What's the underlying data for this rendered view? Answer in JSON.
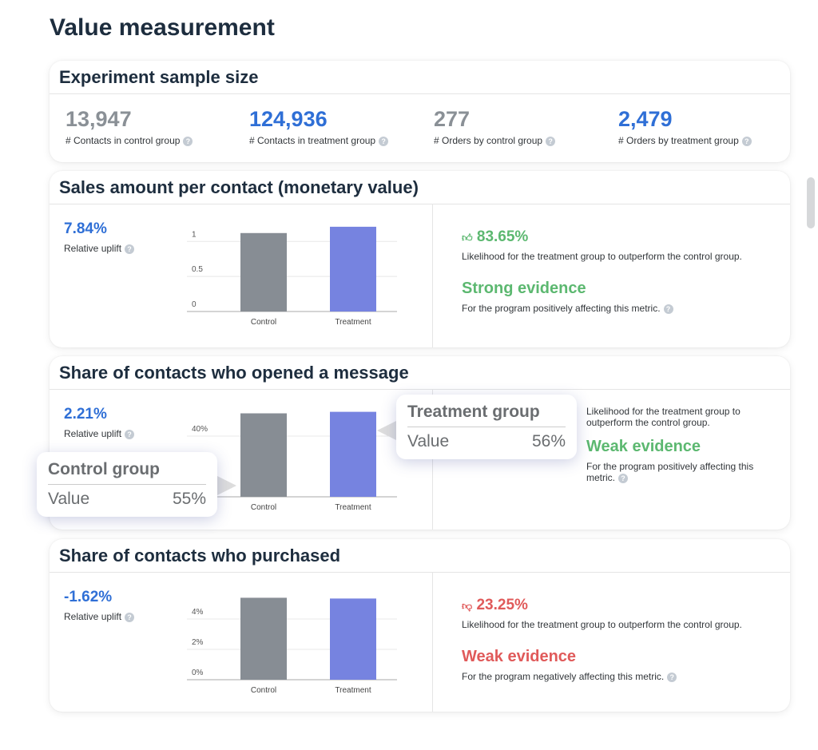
{
  "title": "Value measurement",
  "colors": {
    "blue": "#2f6fd6",
    "gray": "#8a9096",
    "green": "#5cb870",
    "red": "#e05a5a",
    "control_bar": "#878d94",
    "treatment_bar": "#7683e0"
  },
  "sample": {
    "title": "Experiment sample size",
    "kpis": [
      {
        "value": "13,947",
        "label": "# Contacts in control group",
        "color": "#8a9096"
      },
      {
        "value": "124,936",
        "label": "# Contacts in treatment group",
        "color": "#2f6fd6"
      },
      {
        "value": "277",
        "label": "# Orders by control group",
        "color": "#8a9096"
      },
      {
        "value": "2,479",
        "label": "# Orders by treatment group",
        "color": "#2f6fd6"
      }
    ]
  },
  "sections": [
    {
      "title": "Sales amount per contact (monetary value)",
      "uplift": "7.84%",
      "uplift_label": "Relative uplift",
      "likelihood": "83.65%",
      "likelihood_icon": "thumbs-up-icon",
      "likelihood_text": "Likelihood for the treatment group to outperform the control group.",
      "evidence": "Strong evidence",
      "evidence_text": "For the program positively affecting this metric.",
      "tone": "green"
    },
    {
      "title": "Share of contacts who opened a message",
      "uplift": "2.21%",
      "uplift_label": "Relative uplift",
      "likelihood_text": "Likelihood for the treatment group to outperform the control group.",
      "evidence": "Weak evidence",
      "evidence_text": "For the program positively affecting this metric.",
      "tone": "green"
    },
    {
      "title": "Share of contacts who purchased",
      "uplift": "-1.62%",
      "uplift_label": "Relative uplift",
      "likelihood": "23.25%",
      "likelihood_icon": "thumbs-down-icon",
      "likelihood_text": "Likelihood for the treatment group to outperform the control group.",
      "evidence": "Weak evidence",
      "evidence_text": "For the program negatively affecting this metric.",
      "tone": "red"
    }
  ],
  "tooltips": {
    "control": {
      "title": "Control group",
      "label": "Value",
      "value": "55%"
    },
    "treatment": {
      "title": "Treatment group",
      "label": "Value",
      "value": "56%"
    }
  },
  "chart_data": [
    {
      "type": "bar",
      "categories": [
        "Control",
        "Treatment"
      ],
      "values": [
        1.12,
        1.21
      ],
      "yticks": [
        "0",
        "0.5",
        "1"
      ],
      "tickvals": [
        0,
        0.5,
        1
      ],
      "ylim": [
        0,
        1.3
      ],
      "grid": true
    },
    {
      "type": "bar",
      "categories": [
        "Control",
        "Treatment"
      ],
      "values": [
        55,
        56
      ],
      "yticks": [
        "40%"
      ],
      "tickvals": [
        40
      ],
      "ylim": [
        0,
        60
      ],
      "grid": true
    },
    {
      "type": "bar",
      "categories": [
        "Control",
        "Treatment"
      ],
      "values": [
        5.4,
        5.35
      ],
      "yticks": [
        "0%",
        "2%",
        "4%"
      ],
      "tickvals": [
        0,
        2,
        4
      ],
      "ylim": [
        0,
        6
      ],
      "grid": true
    }
  ]
}
